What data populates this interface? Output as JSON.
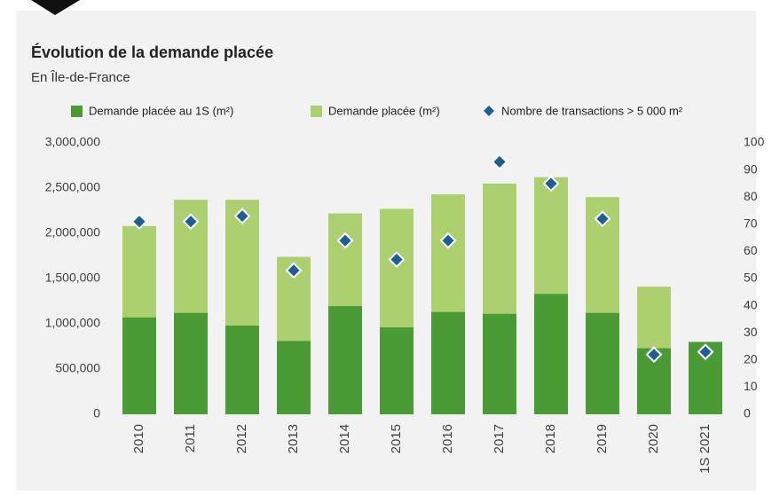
{
  "chart_data": {
    "type": "bar",
    "title": "Évolution de la demande placée",
    "subtitle": "En Île-de-France",
    "categories": [
      "2010",
      "2011",
      "2012",
      "2013",
      "2014",
      "2015",
      "2016",
      "2017",
      "2018",
      "2019",
      "2020",
      "1S 2021"
    ],
    "series": [
      {
        "name": "Demande placée (m²)",
        "color": "#acd06f",
        "values": [
          2080000,
          2370000,
          2370000,
          1740000,
          2220000,
          2270000,
          2430000,
          2550000,
          2620000,
          2400000,
          1410000,
          null
        ]
      },
      {
        "name": "Demande placée au 1S (m²)",
        "color": "#4a9a35",
        "values": [
          1070000,
          1120000,
          980000,
          810000,
          1195000,
          960000,
          1130000,
          1110000,
          1330000,
          1120000,
          730000,
          800000
        ]
      },
      {
        "name": "Nombre de transactions > 5 000 m²",
        "color": "#1f5f8f",
        "axis": "y2",
        "values": [
          71,
          71,
          73,
          53,
          64,
          57,
          64,
          93,
          85,
          72,
          22,
          23
        ]
      }
    ],
    "legend_order": [
      "Demande placée au 1S (m²)",
      "Demande placée (m²)",
      "Nombre de transactions > 5 000 m²"
    ],
    "ylim": [
      0,
      3000000
    ],
    "yticks": [
      0,
      {
        "value": 500000,
        "label": "500,000"
      },
      {
        "value": 1000000,
        "label": "1,000,000"
      },
      {
        "value": 1500000,
        "label": "1,500,000"
      },
      {
        "value": 2000000,
        "label": "2,000,000"
      },
      {
        "value": 2500000,
        "label": "2,500,000"
      },
      {
        "value": 3000000,
        "label": "3,000,000"
      }
    ],
    "y2lim": [
      0,
      100
    ],
    "y2ticks": [
      0,
      10,
      20,
      30,
      40,
      50,
      60,
      70,
      80,
      90,
      100
    ]
  }
}
